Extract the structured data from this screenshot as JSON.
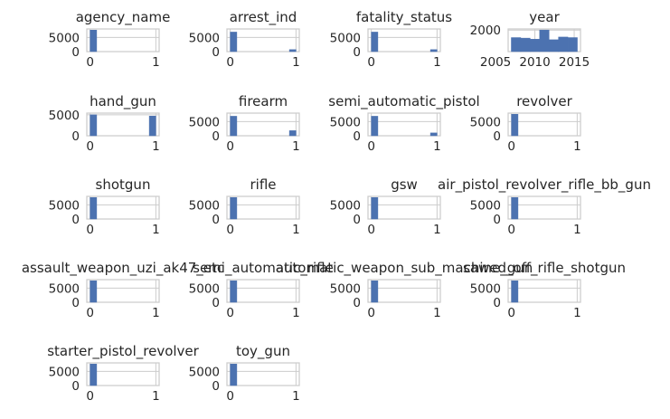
{
  "figure": {
    "bar_color": "#4c72b0",
    "frame_color": "#cccccc",
    "grid_color": "#cccccc",
    "text_color": "#262626"
  },
  "chart_data": [
    {
      "type": "bar",
      "title": "agency_name",
      "bins": [
        {
          "x0": 0,
          "x1": 0.1,
          "count": 7600
        }
      ],
      "xlim": [
        -0.05,
        1.05
      ],
      "ylim": [
        0,
        8000
      ],
      "xticks": [
        0,
        1
      ],
      "yticks": [
        0,
        5000
      ],
      "grid": true
    },
    {
      "type": "bar",
      "title": "arrest_ind",
      "bins": [
        {
          "x0": 0,
          "x1": 0.1,
          "count": 6900
        },
        {
          "x0": 0.9,
          "x1": 1,
          "count": 700
        }
      ],
      "xlim": [
        -0.05,
        1.05
      ],
      "ylim": [
        0,
        8000
      ],
      "xticks": [
        0,
        1
      ],
      "yticks": [
        0,
        5000
      ],
      "grid": true
    },
    {
      "type": "bar",
      "title": "fatality_status",
      "bins": [
        {
          "x0": 0,
          "x1": 0.1,
          "count": 6900
        },
        {
          "x0": 0.9,
          "x1": 1,
          "count": 700
        }
      ],
      "xlim": [
        -0.05,
        1.05
      ],
      "ylim": [
        0,
        8000
      ],
      "xticks": [
        0,
        1
      ],
      "yticks": [
        0,
        5000
      ],
      "grid": true
    },
    {
      "type": "bar",
      "title": "year",
      "bins": [
        {
          "x0": 2007,
          "x1": 2008.2,
          "count": 1300
        },
        {
          "x0": 2008.2,
          "x1": 2009.4,
          "count": 1250
        },
        {
          "x0": 2009.4,
          "x1": 2010.6,
          "count": 1150
        },
        {
          "x0": 2010.6,
          "x1": 2011.8,
          "count": 2000
        },
        {
          "x0": 2011.8,
          "x1": 2013,
          "count": 1100
        },
        {
          "x0": 2013,
          "x1": 2014.2,
          "count": 1350
        },
        {
          "x0": 2014.2,
          "x1": 2015.4,
          "count": 1300
        }
      ],
      "xlim": [
        2006.6,
        2015.8
      ],
      "ylim": [
        0,
        2100
      ],
      "xticks": [
        2005,
        2010,
        2015
      ],
      "xtick_labels": [
        "2005",
        "2010",
        "2015"
      ],
      "yticks": [
        2000
      ],
      "grid": true
    },
    {
      "type": "bar",
      "title": "hand_gun",
      "bins": [
        {
          "x0": 0,
          "x1": 0.1,
          "count": 5000
        },
        {
          "x0": 0.9,
          "x1": 1,
          "count": 4700
        }
      ],
      "xlim": [
        -0.05,
        1.05
      ],
      "ylim": [
        0,
        5400
      ],
      "xticks": [
        0,
        1
      ],
      "yticks": [
        0,
        5000
      ],
      "grid": true
    },
    {
      "type": "bar",
      "title": "firearm",
      "bins": [
        {
          "x0": 0,
          "x1": 0.1,
          "count": 6900
        },
        {
          "x0": 0.9,
          "x1": 1,
          "count": 1800
        }
      ],
      "xlim": [
        -0.05,
        1.05
      ],
      "ylim": [
        0,
        8000
      ],
      "xticks": [
        0,
        1
      ],
      "yticks": [
        0,
        5000
      ],
      "grid": true
    },
    {
      "type": "bar",
      "title": "semi_automatic_pistol",
      "bins": [
        {
          "x0": 0,
          "x1": 0.1,
          "count": 6900
        },
        {
          "x0": 0.9,
          "x1": 1,
          "count": 1000
        }
      ],
      "xlim": [
        -0.05,
        1.05
      ],
      "ylim": [
        0,
        8000
      ],
      "xticks": [
        0,
        1
      ],
      "yticks": [
        0,
        5000
      ],
      "grid": true
    },
    {
      "type": "bar",
      "title": "revolver",
      "bins": [
        {
          "x0": 0,
          "x1": 0.1,
          "count": 7600
        }
      ],
      "xlim": [
        -0.05,
        1.05
      ],
      "ylim": [
        0,
        8000
      ],
      "xticks": [
        0,
        1
      ],
      "yticks": [
        0,
        5000
      ],
      "grid": true
    },
    {
      "type": "bar",
      "title": "shotgun",
      "bins": [
        {
          "x0": 0,
          "x1": 0.1,
          "count": 7600
        }
      ],
      "xlim": [
        -0.05,
        1.05
      ],
      "ylim": [
        0,
        8000
      ],
      "xticks": [
        0,
        1
      ],
      "yticks": [
        0,
        5000
      ],
      "grid": true
    },
    {
      "type": "bar",
      "title": "rifle",
      "bins": [
        {
          "x0": 0,
          "x1": 0.1,
          "count": 7600
        }
      ],
      "xlim": [
        -0.05,
        1.05
      ],
      "ylim": [
        0,
        8000
      ],
      "xticks": [
        0,
        1
      ],
      "yticks": [
        0,
        5000
      ],
      "grid": true
    },
    {
      "type": "bar",
      "title": "gsw",
      "bins": [
        {
          "x0": 0,
          "x1": 0.1,
          "count": 7600
        }
      ],
      "xlim": [
        -0.05,
        1.05
      ],
      "ylim": [
        0,
        8000
      ],
      "xticks": [
        0,
        1
      ],
      "yticks": [
        0,
        5000
      ],
      "grid": true
    },
    {
      "type": "bar",
      "title": "air_pistol_revolver_rifle_bb_gun",
      "bins": [
        {
          "x0": 0,
          "x1": 0.1,
          "count": 7600
        }
      ],
      "xlim": [
        -0.05,
        1.05
      ],
      "ylim": [
        0,
        8000
      ],
      "xticks": [
        0,
        1
      ],
      "yticks": [
        0,
        5000
      ],
      "grid": true
    },
    {
      "type": "bar",
      "title": "assault_weapon_uzi_ak47_etc",
      "bins": [
        {
          "x0": 0,
          "x1": 0.1,
          "count": 7600
        }
      ],
      "xlim": [
        -0.05,
        1.05
      ],
      "ylim": [
        0,
        8000
      ],
      "xticks": [
        0,
        1
      ],
      "yticks": [
        0,
        5000
      ],
      "grid": true
    },
    {
      "type": "bar",
      "title": "semi_automatic_rifle",
      "bins": [
        {
          "x0": 0,
          "x1": 0.1,
          "count": 7600
        }
      ],
      "xlim": [
        -0.05,
        1.05
      ],
      "ylim": [
        0,
        8000
      ],
      "xticks": [
        0,
        1
      ],
      "yticks": [
        0,
        5000
      ],
      "grid": true
    },
    {
      "type": "bar",
      "title": "automatic_weapon_sub_machine_gun",
      "bins": [
        {
          "x0": 0,
          "x1": 0.1,
          "count": 7600
        }
      ],
      "xlim": [
        -0.05,
        1.05
      ],
      "ylim": [
        0,
        8000
      ],
      "xticks": [
        0,
        1
      ],
      "yticks": [
        0,
        5000
      ],
      "grid": true
    },
    {
      "type": "bar",
      "title": "sawed_off_rifle_shotgun",
      "bins": [
        {
          "x0": 0,
          "x1": 0.1,
          "count": 7600
        }
      ],
      "xlim": [
        -0.05,
        1.05
      ],
      "ylim": [
        0,
        8000
      ],
      "xticks": [
        0,
        1
      ],
      "yticks": [
        0,
        5000
      ],
      "grid": true
    },
    {
      "type": "bar",
      "title": "starter_pistol_revolver",
      "bins": [
        {
          "x0": 0,
          "x1": 0.1,
          "count": 7600
        }
      ],
      "xlim": [
        -0.05,
        1.05
      ],
      "ylim": [
        0,
        8000
      ],
      "xticks": [
        0,
        1
      ],
      "yticks": [
        0,
        5000
      ],
      "grid": true
    },
    {
      "type": "bar",
      "title": "toy_gun",
      "bins": [
        {
          "x0": 0,
          "x1": 0.1,
          "count": 7600
        }
      ],
      "xlim": [
        -0.05,
        1.05
      ],
      "ylim": [
        0,
        8000
      ],
      "xticks": [
        0,
        1
      ],
      "yticks": [
        0,
        5000
      ],
      "grid": true
    }
  ]
}
